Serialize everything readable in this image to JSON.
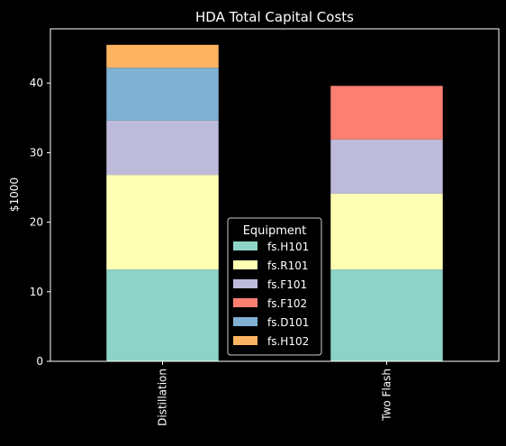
{
  "chart_data": {
    "type": "bar",
    "stacked": true,
    "title": "HDA Total Capital Costs",
    "xlabel": "",
    "ylabel": "$1000",
    "categories": [
      "Distillation",
      "Two Flash"
    ],
    "ylim": [
      0,
      47.8
    ],
    "yticks": [
      0,
      10,
      20,
      30,
      40
    ],
    "series": [
      {
        "name": "fs.H101",
        "color": "#8dd3c7",
        "values": [
          13.2,
          13.2
        ]
      },
      {
        "name": "fs.R101",
        "color": "#ffffb3",
        "values": [
          13.6,
          10.9
        ]
      },
      {
        "name": "fs.F101",
        "color": "#bebada",
        "values": [
          7.8,
          7.8
        ]
      },
      {
        "name": "fs.F102",
        "color": "#fb8072",
        "values": [
          0,
          7.7
        ]
      },
      {
        "name": "fs.D101",
        "color": "#80b1d3",
        "values": [
          7.6,
          0
        ]
      },
      {
        "name": "fs.H102",
        "color": "#fdb462",
        "values": [
          3.3,
          0
        ]
      }
    ],
    "legend": {
      "title": "Equipment",
      "placement": "lower center"
    },
    "grid": false
  }
}
